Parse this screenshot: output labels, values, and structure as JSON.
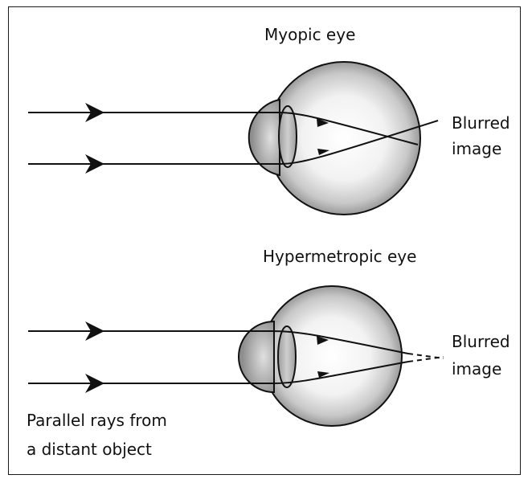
{
  "myopic": {
    "title": "Myopic eye",
    "blur_line1": "Blurred",
    "blur_line2": "image"
  },
  "hypermetropic": {
    "title": "Hypermetropic eye",
    "blur_line1": "Blurred",
    "blur_line2": "image"
  },
  "caption": {
    "line1": "Parallel rays from",
    "line2": "a distant object"
  }
}
